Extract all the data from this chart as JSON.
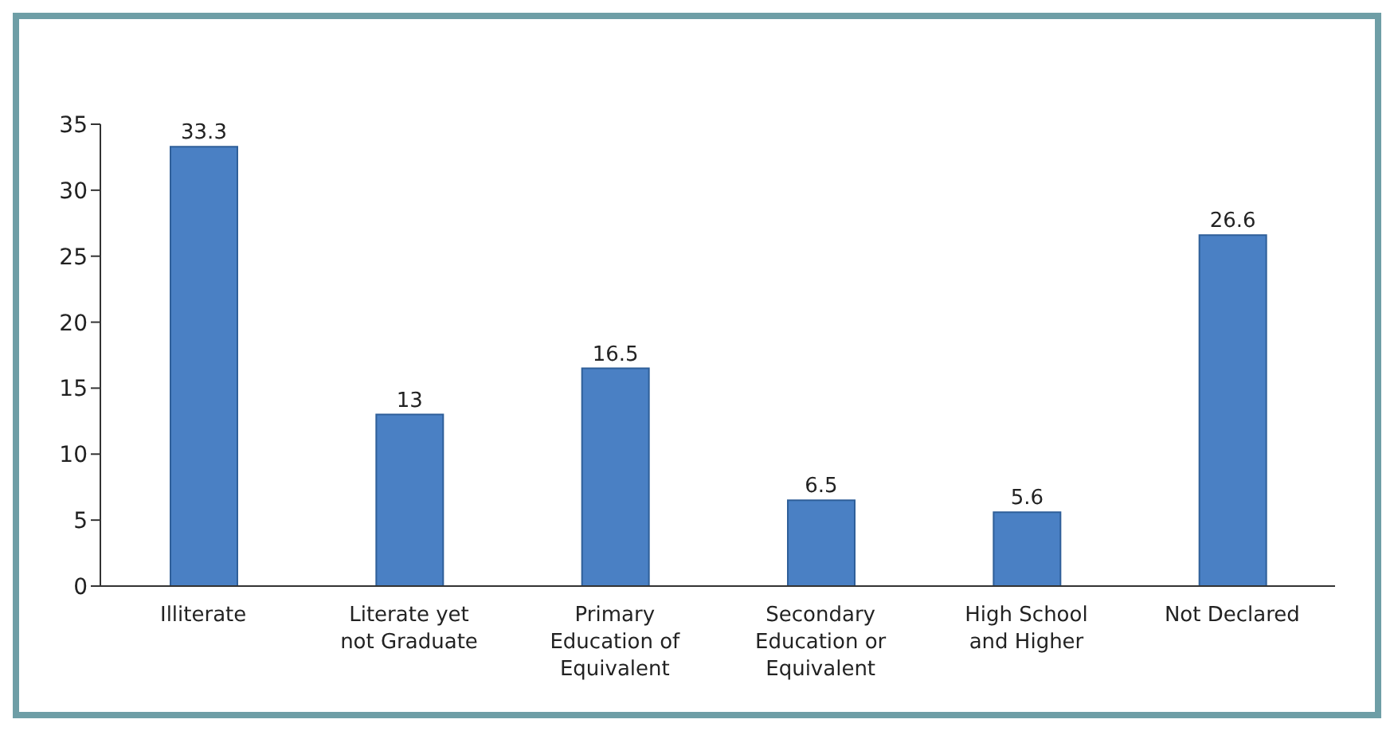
{
  "chart_data": {
    "type": "bar",
    "categories": [
      "Illiterate",
      "Literate yet not Graduate",
      "Primary Education of Equivalent",
      "Secondary Education or Equivalent",
      "High School and Higher",
      "Not Declared"
    ],
    "values": [
      33.3,
      13,
      16.5,
      6.5,
      5.6,
      26.6
    ],
    "color": "#4a80c4",
    "ylim": [
      0,
      35
    ],
    "yticks": [
      0,
      5,
      10,
      15,
      20,
      25,
      30,
      35
    ],
    "grid": false,
    "data_labels": true
  }
}
